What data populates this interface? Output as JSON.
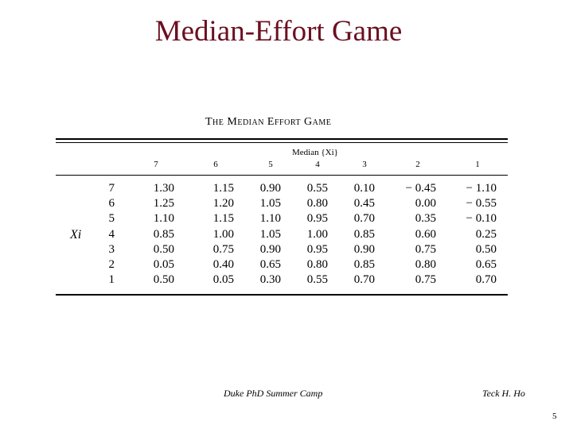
{
  "slide": {
    "title": "Median-Effort Game",
    "footer_left": "Duke PhD Summer Camp",
    "footer_right": "Teck H. Ho",
    "page_number": "5"
  },
  "table": {
    "caption": "The Median Effort Game",
    "median_header": "Median {Xi}",
    "row_header": "Xi",
    "columns": [
      "7",
      "6",
      "5",
      "4",
      "3",
      "2",
      "1"
    ],
    "rows": [
      {
        "label": "7",
        "values": [
          "1.30",
          "1.15",
          "0.90",
          "0.55",
          "0.10",
          "− 0.45",
          "− 1.10"
        ]
      },
      {
        "label": "6",
        "values": [
          "1.25",
          "1.20",
          "1.05",
          "0.80",
          "0.45",
          "0.00",
          "− 0.55"
        ]
      },
      {
        "label": "5",
        "values": [
          "1.10",
          "1.15",
          "1.10",
          "0.95",
          "0.70",
          "0.35",
          "− 0.10"
        ]
      },
      {
        "label": "4",
        "values": [
          "0.85",
          "1.00",
          "1.05",
          "1.00",
          "0.85",
          "0.60",
          "0.25"
        ]
      },
      {
        "label": "3",
        "values": [
          "0.50",
          "0.75",
          "0.90",
          "0.95",
          "0.90",
          "0.75",
          "0.50"
        ]
      },
      {
        "label": "2",
        "values": [
          "0.05",
          "0.40",
          "0.65",
          "0.80",
          "0.85",
          "0.80",
          "0.65"
        ]
      },
      {
        "label": "1",
        "values": [
          "0.50",
          "0.05",
          "0.30",
          "0.55",
          "0.70",
          "0.75",
          "0.70"
        ]
      }
    ]
  }
}
